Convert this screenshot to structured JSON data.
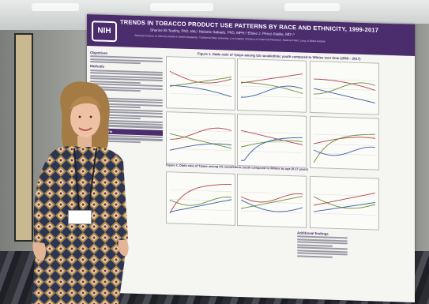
{
  "poster": {
    "logo": "NIH",
    "title": "TRENDS IN TOBACCO PRODUCT USE PATTERNS BY RACE AND ETHNICITY, 1999-2017",
    "authors": "Sherine El-Toukhy, PhD, MA,¹ Melanie Sabado, PhD, MPH,² Eliseo J. Pérez-Stable, MD¹,³",
    "affiliations": "¹National Institute on Minority Health & Health Disparities; ²California State University, Los Angeles; ³Division of Intramural Research, National Heart, Lung, & Blood Institute",
    "sections": {
      "objectives": "Objectives",
      "methods": "Methods",
      "results": "Results",
      "conclusions": "Conclusions",
      "findings": "Additional findings"
    },
    "figure1_title": "Figure 1. Odds ratio of Tpeps among US racial/ethnic youth compared to Whites over time (1999 – 2017)",
    "figure2_title": "Figure 2. Odds ratio of Tpeps among US racial/ethnic youth compared to Whites by age (9-17 years)"
  },
  "colors": {
    "header": "#4b2d6e",
    "series_a": "#b3434a",
    "series_b": "#6b8e3a",
    "series_c": "#3a5fa0"
  }
}
